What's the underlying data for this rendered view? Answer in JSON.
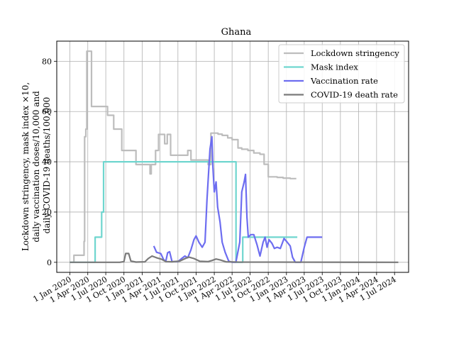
{
  "chart_data": {
    "type": "line",
    "title": "Ghana",
    "xlabel": "",
    "ylabel_lines": [
      "Lockdown stringency, mask index ×10,",
      "daily vaccination doses/10,000 and",
      "daily COVID-19 deaths/100,000"
    ],
    "xlim": [
      "2019-10-27",
      "2024-09-10"
    ],
    "ylim": [
      -4,
      88
    ],
    "x_ticks": [
      {
        "date": "2020-01-01",
        "label": "1 Jan 2020"
      },
      {
        "date": "2020-04-01",
        "label": "1 Apr 2020"
      },
      {
        "date": "2020-07-01",
        "label": "1 Jul 2020"
      },
      {
        "date": "2020-10-01",
        "label": "1 Oct 2020"
      },
      {
        "date": "2021-01-01",
        "label": "1 Jan 2021"
      },
      {
        "date": "2021-04-01",
        "label": "1 Apr 2021"
      },
      {
        "date": "2021-07-01",
        "label": "1 Jul 2021"
      },
      {
        "date": "2021-10-01",
        "label": "1 Oct 2021"
      },
      {
        "date": "2022-01-01",
        "label": "1 Jan 2022"
      },
      {
        "date": "2022-04-01",
        "label": "1 Apr 2022"
      },
      {
        "date": "2022-07-01",
        "label": "1 Jul 2022"
      },
      {
        "date": "2022-10-01",
        "label": "1 Oct 2022"
      },
      {
        "date": "2023-01-01",
        "label": "1 Jan 2023"
      },
      {
        "date": "2023-04-01",
        "label": "1 Apr 2023"
      },
      {
        "date": "2023-07-01",
        "label": "1 Jul 2023"
      },
      {
        "date": "2023-10-01",
        "label": "1 Oct 2023"
      },
      {
        "date": "2024-01-01",
        "label": "1 Jan 2024"
      },
      {
        "date": "2024-04-01",
        "label": "1 Apr 2024"
      },
      {
        "date": "2024-07-01",
        "label": "1 Jul 2024"
      }
    ],
    "y_ticks": [
      0,
      20,
      40,
      60,
      80
    ],
    "grid": true,
    "legend_position": "top-right",
    "series": [
      {
        "name": "Lockdown stringency",
        "color": "#bdbdbd",
        "points": [
          [
            "2020-01-01",
            0
          ],
          [
            "2020-01-22",
            0
          ],
          [
            "2020-01-22",
            2.8
          ],
          [
            "2020-03-13",
            2.8
          ],
          [
            "2020-03-13",
            8.3
          ],
          [
            "2020-03-16",
            8.3
          ],
          [
            "2020-03-16",
            50
          ],
          [
            "2020-03-22",
            50
          ],
          [
            "2020-03-22",
            53
          ],
          [
            "2020-03-27",
            53
          ],
          [
            "2020-03-27",
            84
          ],
          [
            "2020-04-20",
            84
          ],
          [
            "2020-04-20",
            62
          ],
          [
            "2020-07-10",
            62
          ],
          [
            "2020-07-10",
            58.5
          ],
          [
            "2020-08-10",
            58.5
          ],
          [
            "2020-08-10",
            53
          ],
          [
            "2020-09-20",
            53
          ],
          [
            "2020-09-20",
            44.5
          ],
          [
            "2020-12-01",
            44.5
          ],
          [
            "2020-12-01",
            38.9
          ],
          [
            "2021-02-10",
            38.9
          ],
          [
            "2021-02-10",
            35.2
          ],
          [
            "2021-02-16",
            35.2
          ],
          [
            "2021-02-16",
            38.9
          ],
          [
            "2021-03-10",
            38.9
          ],
          [
            "2021-03-10",
            44.5
          ],
          [
            "2021-03-25",
            44.5
          ],
          [
            "2021-03-25",
            50.9
          ],
          [
            "2021-04-25",
            50.9
          ],
          [
            "2021-04-25",
            47.2
          ],
          [
            "2021-05-08",
            47.2
          ],
          [
            "2021-05-08",
            50.9
          ],
          [
            "2021-05-25",
            50.9
          ],
          [
            "2021-05-25",
            42.6
          ],
          [
            "2021-08-20",
            42.6
          ],
          [
            "2021-08-20",
            44.5
          ],
          [
            "2021-09-05",
            44.5
          ],
          [
            "2021-09-05",
            40.7
          ],
          [
            "2021-12-01",
            40.7
          ],
          [
            "2021-12-01",
            38.9
          ],
          [
            "2021-12-15",
            38.9
          ],
          [
            "2021-12-15",
            51.4
          ],
          [
            "2022-01-20",
            51.4
          ],
          [
            "2022-01-20",
            51
          ],
          [
            "2022-02-10",
            51
          ],
          [
            "2022-02-10",
            50.5
          ],
          [
            "2022-03-10",
            50.5
          ],
          [
            "2022-03-10",
            49.5
          ],
          [
            "2022-04-01",
            49.5
          ],
          [
            "2022-04-01",
            48.8
          ],
          [
            "2022-05-01",
            48.8
          ],
          [
            "2022-05-01",
            45.5
          ],
          [
            "2022-05-20",
            45.5
          ],
          [
            "2022-05-20",
            45
          ],
          [
            "2022-06-20",
            45
          ],
          [
            "2022-06-20",
            44.5
          ],
          [
            "2022-07-20",
            44.5
          ],
          [
            "2022-07-20",
            43.5
          ],
          [
            "2022-08-20",
            43.5
          ],
          [
            "2022-08-20",
            43
          ],
          [
            "2022-09-10",
            43
          ],
          [
            "2022-09-10",
            39
          ],
          [
            "2022-10-01",
            39
          ],
          [
            "2022-10-01",
            34
          ],
          [
            "2022-11-15",
            34
          ],
          [
            "2022-11-15",
            33.8
          ],
          [
            "2022-12-15",
            33.8
          ],
          [
            "2022-12-15",
            33.5
          ],
          [
            "2023-01-20",
            33.5
          ],
          [
            "2023-01-20",
            33.3
          ],
          [
            "2023-02-20",
            33.3
          ]
        ]
      },
      {
        "name": "Mask index",
        "color": "#6fd6cf",
        "points": [
          [
            "2020-01-01",
            0
          ],
          [
            "2020-05-08",
            0
          ],
          [
            "2020-05-08",
            10
          ],
          [
            "2020-06-10",
            10
          ],
          [
            "2020-06-10",
            20
          ],
          [
            "2020-06-20",
            20
          ],
          [
            "2020-06-20",
            40
          ],
          [
            "2022-04-21",
            40
          ],
          [
            "2022-04-21",
            0
          ],
          [
            "2022-05-25",
            0
          ],
          [
            "2022-05-25",
            10
          ],
          [
            "2023-02-25",
            10
          ]
        ]
      },
      {
        "name": "Vaccination rate",
        "color": "#6d6df0",
        "segments": [
          [
            [
              "2021-03-01",
              6.5
            ],
            [
              "2021-03-15",
              4
            ],
            [
              "2021-04-05",
              3.5
            ],
            [
              "2021-04-20",
              1
            ],
            [
              "2021-05-01",
              0.5
            ],
            [
              "2021-05-10",
              3.8
            ],
            [
              "2021-05-20",
              4.2
            ],
            [
              "2021-06-01",
              0.3
            ],
            [
              "2021-07-01",
              0.3
            ],
            [
              "2021-07-20",
              1.5
            ],
            [
              "2021-08-05",
              2.5
            ],
            [
              "2021-08-20",
              1.8
            ],
            [
              "2021-09-05",
              5
            ],
            [
              "2021-09-20",
              9
            ],
            [
              "2021-10-01",
              10.5
            ],
            [
              "2021-10-15",
              8
            ],
            [
              "2021-11-01",
              6
            ],
            [
              "2021-11-15",
              8
            ],
            [
              "2021-11-25",
              25
            ],
            [
              "2021-12-10",
              45
            ],
            [
              "2021-12-20",
              50
            ],
            [
              "2021-12-25",
              38
            ],
            [
              "2022-01-01",
              28
            ],
            [
              "2022-01-10",
              32
            ],
            [
              "2022-01-18",
              22
            ],
            [
              "2022-01-30",
              16
            ],
            [
              "2022-02-10",
              8
            ],
            [
              "2022-02-25",
              4
            ],
            [
              "2022-03-15",
              0.5
            ],
            [
              "2022-04-01",
              0
            ],
            [
              "2022-04-20",
              0
            ],
            [
              "2022-05-10",
              8
            ],
            [
              "2022-05-20",
              28
            ],
            [
              "2022-06-01",
              32
            ],
            [
              "2022-06-08",
              35
            ],
            [
              "2022-06-15",
              18
            ],
            [
              "2022-06-22",
              10
            ],
            [
              "2022-07-05",
              11
            ],
            [
              "2022-07-20",
              11
            ],
            [
              "2022-08-05",
              7
            ],
            [
              "2022-08-20",
              2.5
            ],
            [
              "2022-09-05",
              8
            ],
            [
              "2022-09-15",
              10
            ],
            [
              "2022-09-25",
              6
            ],
            [
              "2022-10-05",
              9
            ],
            [
              "2022-10-20",
              7.5
            ],
            [
              "2022-11-01",
              5.5
            ],
            [
              "2022-11-15",
              6
            ],
            [
              "2022-12-01",
              5.5
            ],
            [
              "2022-12-20",
              9.5
            ],
            [
              "2023-01-05",
              8
            ],
            [
              "2023-01-20",
              6.5
            ],
            [
              "2023-02-01",
              2
            ],
            [
              "2023-02-15",
              0
            ],
            [
              "2023-03-15",
              0
            ],
            [
              "2023-04-01",
              6
            ],
            [
              "2023-04-15",
              10
            ],
            [
              "2023-07-01",
              10
            ]
          ]
        ]
      },
      {
        "name": "COVID-19 death rate",
        "color": "#7a7a7a",
        "points": [
          [
            "2020-01-01",
            0
          ],
          [
            "2020-09-10",
            0
          ],
          [
            "2020-10-01",
            0.3
          ],
          [
            "2020-10-10",
            3.5
          ],
          [
            "2020-10-25",
            3.5
          ],
          [
            "2020-11-05",
            0.5
          ],
          [
            "2020-12-01",
            0.1
          ],
          [
            "2021-01-15",
            0.2
          ],
          [
            "2021-02-01",
            1.5
          ],
          [
            "2021-02-20",
            2.5
          ],
          [
            "2021-03-15",
            1.8
          ],
          [
            "2021-04-10",
            1.2
          ],
          [
            "2021-05-01",
            0.3
          ],
          [
            "2021-06-01",
            0.2
          ],
          [
            "2021-07-10",
            0.5
          ],
          [
            "2021-08-01",
            1.3
          ],
          [
            "2021-08-25",
            2.1
          ],
          [
            "2021-09-20",
            1.5
          ],
          [
            "2021-10-20",
            0.4
          ],
          [
            "2021-12-01",
            0.3
          ],
          [
            "2021-12-20",
            0.7
          ],
          [
            "2022-01-10",
            1.3
          ],
          [
            "2022-02-01",
            0.9
          ],
          [
            "2022-03-01",
            0.2
          ],
          [
            "2022-05-01",
            0.1
          ],
          [
            "2024-07-20",
            0
          ]
        ]
      }
    ]
  }
}
